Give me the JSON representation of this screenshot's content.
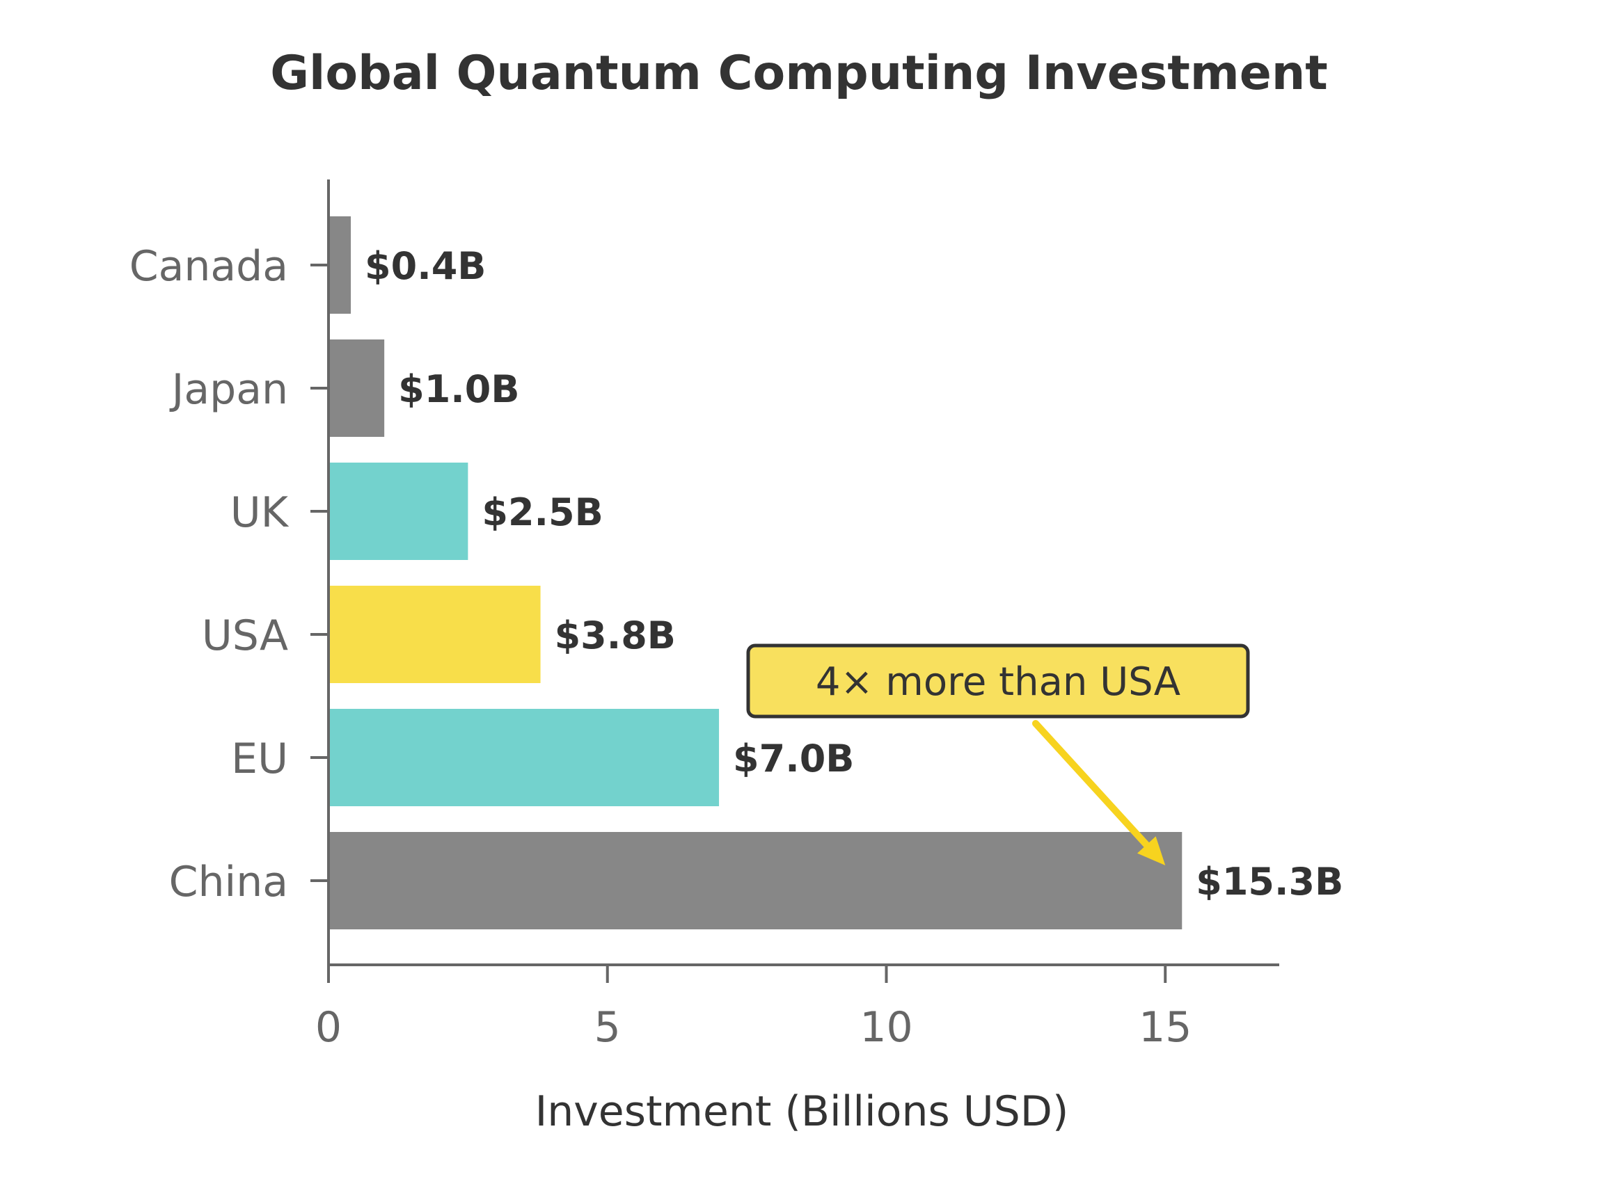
{
  "chart_data": {
    "type": "bar",
    "orientation": "horizontal",
    "title": "Global Quantum Computing Investment",
    "xlabel": "Investment (Billions USD)",
    "ylabel": "",
    "xlim": [
      0,
      17
    ],
    "xticks": [
      0,
      5,
      10,
      15
    ],
    "categories": [
      "Canada",
      "Japan",
      "UK",
      "USA",
      "EU",
      "China"
    ],
    "values": [
      0.4,
      1.0,
      2.5,
      3.8,
      7.0,
      15.3
    ],
    "value_labels": [
      "$0.4B",
      "$1.0B",
      "$2.5B",
      "$3.8B",
      "$7.0B",
      "$15.3B"
    ],
    "bar_colors": [
      "#878787",
      "#878787",
      "#73d2cd",
      "#f8de4a",
      "#73d2cd",
      "#878787"
    ],
    "grid": false,
    "annotation": {
      "text": "4× more than USA",
      "target_category": "China",
      "target_value": 15.3,
      "box_color": "#f8e05e",
      "arrow_color": "#f7d31f"
    },
    "colors": {
      "axis": "#666666",
      "text": "#333333"
    }
  }
}
